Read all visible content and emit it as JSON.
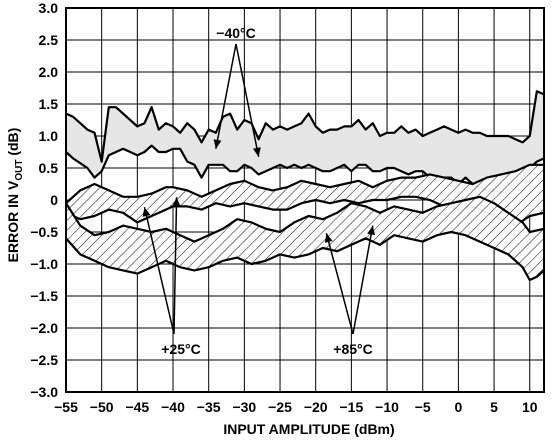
{
  "chart_data": {
    "type": "line",
    "title": "",
    "xlabel": "INPUT AMPLITUDE (dBm)",
    "ylabel_main": "ERROR IN V",
    "ylabel_sub": "OUT",
    "ylabel_unit": " (dB)",
    "xlim": [
      -55,
      12
    ],
    "ylim": [
      -3.0,
      3.0
    ],
    "x_ticks": [
      -55,
      -50,
      -45,
      -40,
      -35,
      -30,
      -25,
      -20,
      -15,
      -10,
      -5,
      0,
      5,
      10
    ],
    "x_tick_labels": [
      "−55",
      "−50",
      "−45",
      "−40",
      "−35",
      "−30",
      "−25",
      "−20",
      "−15",
      "−10",
      "−5",
      "0",
      "5",
      "10"
    ],
    "y_ticks": [
      3.0,
      2.5,
      2.0,
      1.5,
      1.0,
      0.5,
      0,
      -0.5,
      -1.0,
      -1.5,
      -2.0,
      -2.5,
      -3.0
    ],
    "y_tick_labels": [
      "3.0",
      "2.5",
      "2.0",
      "1.5",
      "1.0",
      "0.5",
      "0",
      "−0.5",
      "−1.0",
      "−1.5",
      "−2.0",
      "−2.5",
      "−3.0"
    ],
    "grid": true,
    "bands": [
      {
        "name": "−40°C",
        "fill": "gray",
        "upper": [
          [
            -55,
            1.35
          ],
          [
            -54,
            1.3
          ],
          [
            -52,
            1.1
          ],
          [
            -51,
            1.05
          ],
          [
            -50,
            0.6
          ],
          [
            -49,
            1.45
          ],
          [
            -48,
            1.45
          ],
          [
            -47,
            1.35
          ],
          [
            -46,
            1.25
          ],
          [
            -45,
            1.15
          ],
          [
            -44,
            1.2
          ],
          [
            -43,
            1.45
          ],
          [
            -42,
            1.1
          ],
          [
            -41,
            1.2
          ],
          [
            -40,
            1.15
          ],
          [
            -39,
            1.05
          ],
          [
            -38,
            1.2
          ],
          [
            -37,
            1.1
          ],
          [
            -36,
            0.9
          ],
          [
            -35,
            1.1
          ],
          [
            -34,
            1.05
          ],
          [
            -33,
            1.3
          ],
          [
            -32,
            1.35
          ],
          [
            -31,
            1.1
          ],
          [
            -30,
            1.25
          ],
          [
            -29,
            1.2
          ],
          [
            -28,
            0.95
          ],
          [
            -27,
            1.2
          ],
          [
            -26,
            1.1
          ],
          [
            -25,
            1.15
          ],
          [
            -24,
            1.1
          ],
          [
            -23,
            1.15
          ],
          [
            -22,
            1.2
          ],
          [
            -21,
            1.35
          ],
          [
            -20,
            1.15
          ],
          [
            -19,
            1.05
          ],
          [
            -18,
            1.1
          ],
          [
            -17,
            1.1
          ],
          [
            -16,
            1.15
          ],
          [
            -15,
            1.15
          ],
          [
            -14,
            1.25
          ],
          [
            -13,
            1.1
          ],
          [
            -12,
            1.2
          ],
          [
            -11,
            1.0
          ],
          [
            -10,
            1.05
          ],
          [
            -9,
            1.05
          ],
          [
            -8,
            1.15
          ],
          [
            -7,
            1.05
          ],
          [
            -6,
            1.1
          ],
          [
            -5,
            1.0
          ],
          [
            -4,
            1.05
          ],
          [
            -3,
            1.1
          ],
          [
            -2,
            1.15
          ],
          [
            -1,
            1.1
          ],
          [
            0,
            1.05
          ],
          [
            1,
            1.1
          ],
          [
            2,
            1.05
          ],
          [
            3,
            1.05
          ],
          [
            4,
            1.0
          ],
          [
            5,
            1.0
          ],
          [
            6,
            1.0
          ],
          [
            7,
            1.0
          ],
          [
            8,
            0.95
          ],
          [
            9,
            0.9
          ],
          [
            10,
            1.0
          ],
          [
            11,
            1.7
          ],
          [
            12,
            1.65
          ]
        ],
        "lower": [
          [
            -55,
            0.75
          ],
          [
            -54,
            0.65
          ],
          [
            -52,
            0.5
          ],
          [
            -51,
            0.35
          ],
          [
            -50,
            0.45
          ],
          [
            -49,
            0.7
          ],
          [
            -48,
            0.75
          ],
          [
            -47,
            0.8
          ],
          [
            -46,
            0.75
          ],
          [
            -45,
            0.7
          ],
          [
            -44,
            0.75
          ],
          [
            -43,
            0.85
          ],
          [
            -42,
            0.75
          ],
          [
            -41,
            0.75
          ],
          [
            -40,
            0.8
          ],
          [
            -39,
            0.8
          ],
          [
            -38,
            0.6
          ],
          [
            -37,
            0.55
          ],
          [
            -36,
            0.35
          ],
          [
            -35,
            0.55
          ],
          [
            -34,
            0.55
          ],
          [
            -33,
            0.55
          ],
          [
            -32,
            0.45
          ],
          [
            -31,
            0.45
          ],
          [
            -30,
            0.55
          ],
          [
            -29,
            0.5
          ],
          [
            -28,
            0.4
          ],
          [
            -27,
            0.45
          ],
          [
            -26,
            0.5
          ],
          [
            -25,
            0.55
          ],
          [
            -24,
            0.5
          ],
          [
            -23,
            0.55
          ],
          [
            -22,
            0.5
          ],
          [
            -21,
            0.55
          ],
          [
            -20,
            0.5
          ],
          [
            -19,
            0.45
          ],
          [
            -18,
            0.45
          ],
          [
            -17,
            0.5
          ],
          [
            -16,
            0.55
          ],
          [
            -15,
            0.45
          ],
          [
            -14,
            0.55
          ],
          [
            -13,
            0.55
          ],
          [
            -12,
            0.45
          ],
          [
            -11,
            0.45
          ],
          [
            -10,
            0.5
          ],
          [
            -9,
            0.5
          ],
          [
            -8,
            0.45
          ],
          [
            -7,
            0.4
          ],
          [
            -6,
            0.45
          ],
          [
            -5,
            0.45
          ],
          [
            -4,
            0.35
          ],
          [
            -3,
            0.3
          ],
          [
            -2,
            0.35
          ],
          [
            -1,
            0.35
          ],
          [
            0,
            0.25
          ],
          [
            1,
            0.35
          ],
          [
            2,
            0.25
          ],
          [
            3,
            0.2
          ],
          [
            4,
            0.15
          ],
          [
            5,
            0.15
          ],
          [
            6,
            0.1
          ],
          [
            7,
            0.15
          ],
          [
            8,
            0.2
          ],
          [
            9,
            0.35
          ],
          [
            10,
            0.5
          ],
          [
            11,
            0.6
          ],
          [
            12,
            0.65
          ]
        ]
      },
      {
        "name": "+25°C",
        "fill": "hatch",
        "upper": [
          [
            -55,
            -0.05
          ],
          [
            -53,
            0.15
          ],
          [
            -51,
            0.25
          ],
          [
            -49,
            0.15
          ],
          [
            -47,
            0.05
          ],
          [
            -45,
            0.05
          ],
          [
            -43,
            0.1
          ],
          [
            -41,
            0.2
          ],
          [
            -40,
            0.2
          ],
          [
            -38,
            0.15
          ],
          [
            -36,
            0.05
          ],
          [
            -34,
            0.15
          ],
          [
            -32,
            0.25
          ],
          [
            -30,
            0.3
          ],
          [
            -28,
            0.2
          ],
          [
            -26,
            0.15
          ],
          [
            -24,
            0.2
          ],
          [
            -22,
            0.3
          ],
          [
            -20,
            0.25
          ],
          [
            -18,
            0.2
          ],
          [
            -16,
            0.25
          ],
          [
            -14,
            0.3
          ],
          [
            -12,
            0.2
          ],
          [
            -10,
            0.3
          ],
          [
            -8,
            0.35
          ],
          [
            -6,
            0.35
          ],
          [
            -4,
            0.4
          ],
          [
            -2,
            0.35
          ],
          [
            0,
            0.3
          ],
          [
            2,
            0.25
          ],
          [
            4,
            0.35
          ],
          [
            6,
            0.4
          ],
          [
            8,
            0.45
          ],
          [
            10,
            0.55
          ],
          [
            12,
            0.55
          ]
        ],
        "lower": [
          [
            -55,
            -0.2
          ],
          [
            -53,
            -0.3
          ],
          [
            -51,
            -0.25
          ],
          [
            -49,
            -0.15
          ],
          [
            -47,
            -0.2
          ],
          [
            -45,
            -0.35
          ],
          [
            -43,
            -0.25
          ],
          [
            -41,
            -0.15
          ],
          [
            -40,
            -0.1
          ],
          [
            -38,
            -0.1
          ],
          [
            -36,
            -0.15
          ],
          [
            -34,
            -0.05
          ],
          [
            -32,
            -0.1
          ],
          [
            -30,
            -0.05
          ],
          [
            -28,
            -0.1
          ],
          [
            -26,
            -0.15
          ],
          [
            -24,
            -0.15
          ],
          [
            -22,
            -0.05
          ],
          [
            -20,
            0.0
          ],
          [
            -18,
            -0.05
          ],
          [
            -16,
            0.0
          ],
          [
            -14,
            -0.05
          ],
          [
            -12,
            0.0
          ],
          [
            -10,
            0.0
          ],
          [
            -8,
            0.05
          ],
          [
            -6,
            0.05
          ],
          [
            -4,
            0.0
          ],
          [
            -2,
            -0.1
          ],
          [
            0,
            -0.15
          ],
          [
            2,
            -0.1
          ],
          [
            4,
            -0.2
          ],
          [
            6,
            -0.3
          ],
          [
            8,
            -0.4
          ],
          [
            10,
            -0.25
          ],
          [
            12,
            -0.2
          ]
        ]
      },
      {
        "name": "+85°C",
        "fill": "hatch",
        "upper": [
          [
            -55,
            -0.05
          ],
          [
            -53,
            -0.4
          ],
          [
            -51,
            -0.55
          ],
          [
            -49,
            -0.5
          ],
          [
            -47,
            -0.4
          ],
          [
            -45,
            -0.45
          ],
          [
            -43,
            -0.5
          ],
          [
            -41,
            -0.45
          ],
          [
            -39,
            -0.55
          ],
          [
            -37,
            -0.65
          ],
          [
            -35,
            -0.55
          ],
          [
            -33,
            -0.45
          ],
          [
            -31,
            -0.3
          ],
          [
            -29,
            -0.35
          ],
          [
            -27,
            -0.45
          ],
          [
            -25,
            -0.5
          ],
          [
            -23,
            -0.35
          ],
          [
            -21,
            -0.25
          ],
          [
            -19,
            -0.3
          ],
          [
            -17,
            -0.2
          ],
          [
            -15,
            -0.05
          ],
          [
            -13,
            -0.1
          ],
          [
            -11,
            -0.2
          ],
          [
            -9,
            -0.1
          ],
          [
            -7,
            -0.15
          ],
          [
            -5,
            -0.2
          ],
          [
            -3,
            -0.1
          ],
          [
            -1,
            -0.05
          ],
          [
            1,
            0.0
          ],
          [
            3,
            0.05
          ],
          [
            5,
            -0.05
          ],
          [
            7,
            -0.2
          ],
          [
            9,
            -0.35
          ],
          [
            10,
            -0.5
          ],
          [
            12,
            -0.45
          ]
        ],
        "lower": [
          [
            -55,
            -0.6
          ],
          [
            -53,
            -0.85
          ],
          [
            -51,
            -0.95
          ],
          [
            -49,
            -1.05
          ],
          [
            -47,
            -1.1
          ],
          [
            -45,
            -1.15
          ],
          [
            -43,
            -1.05
          ],
          [
            -41,
            -0.95
          ],
          [
            -39,
            -1.05
          ],
          [
            -37,
            -1.1
          ],
          [
            -35,
            -1.05
          ],
          [
            -33,
            -0.95
          ],
          [
            -31,
            -0.9
          ],
          [
            -29,
            -1.0
          ],
          [
            -27,
            -0.95
          ],
          [
            -25,
            -0.85
          ],
          [
            -23,
            -0.9
          ],
          [
            -21,
            -0.85
          ],
          [
            -19,
            -0.75
          ],
          [
            -17,
            -0.8
          ],
          [
            -15,
            -0.7
          ],
          [
            -13,
            -0.6
          ],
          [
            -11,
            -0.7
          ],
          [
            -9,
            -0.55
          ],
          [
            -7,
            -0.6
          ],
          [
            -5,
            -0.65
          ],
          [
            -3,
            -0.55
          ],
          [
            -1,
            -0.5
          ],
          [
            1,
            -0.55
          ],
          [
            3,
            -0.65
          ],
          [
            5,
            -0.75
          ],
          [
            7,
            -0.85
          ],
          [
            9,
            -1.05
          ],
          [
            10,
            -1.25
          ],
          [
            11,
            -1.2
          ],
          [
            12,
            -1.1
          ]
        ]
      }
    ],
    "annotations": [
      {
        "text": "−40°C",
        "arrows_to_x": [
          -34,
          -28
        ]
      },
      {
        "text": "+25°C",
        "arrows_to_x": [
          -44,
          -39.5
        ]
      },
      {
        "text": "+85°C",
        "arrows_to_x": [
          -18.5,
          -12
        ]
      }
    ]
  }
}
